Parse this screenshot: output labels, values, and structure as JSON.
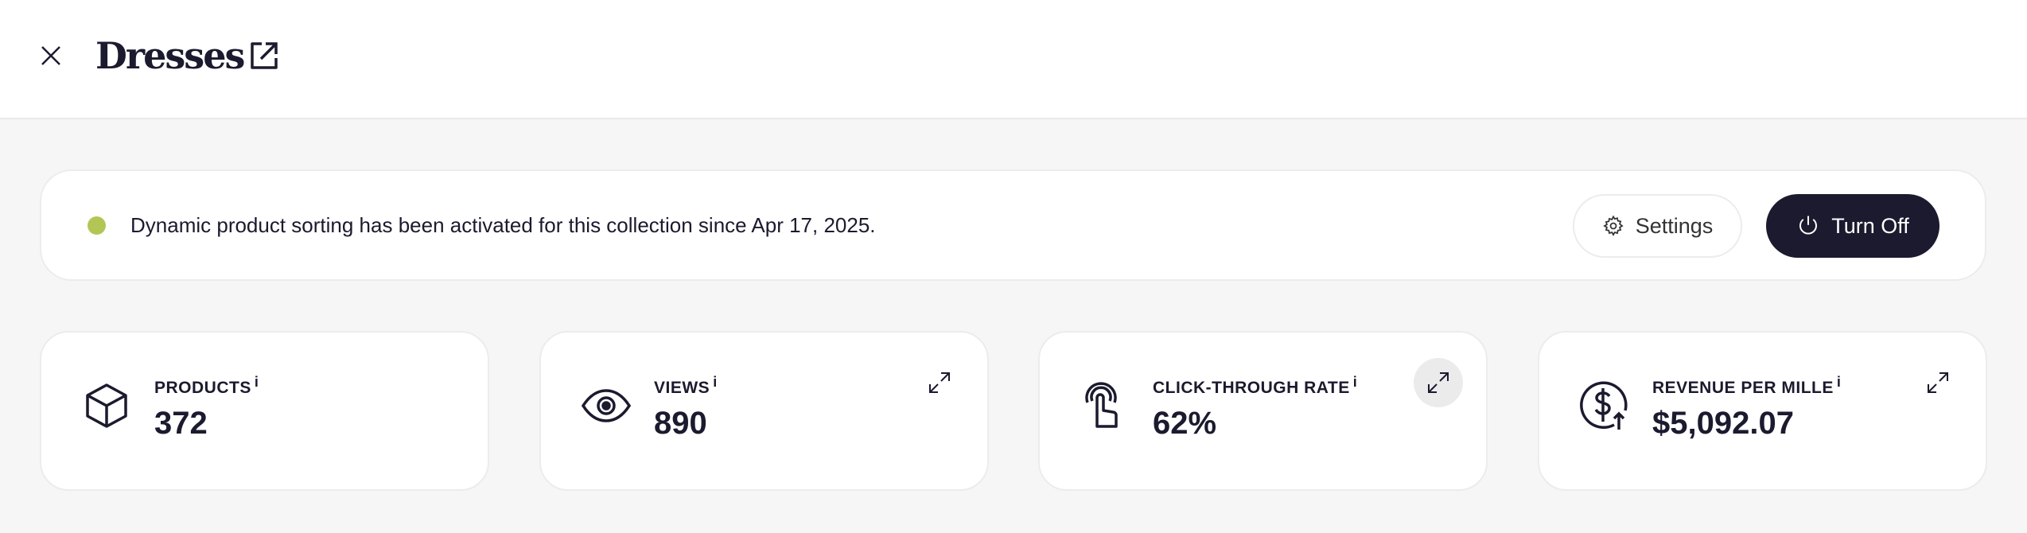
{
  "header": {
    "title": "Dresses",
    "close_icon": "close-icon",
    "external_icon": "external-link-icon"
  },
  "banner": {
    "status_color": "#b2c656",
    "message": "Dynamic product sorting has been activated for this collection since Apr 17, 2025.",
    "settings_label": "Settings",
    "turn_off_label": "Turn Off"
  },
  "cards": [
    {
      "label": "PRODUCTS",
      "info": "i",
      "value": "372",
      "icon": "box-icon"
    },
    {
      "label": "VIEWS",
      "info": "i",
      "value": "890",
      "icon": "eye-icon"
    },
    {
      "label": "CLICK-THROUGH RATE",
      "info": "i",
      "value": "62%",
      "icon": "tap-icon"
    },
    {
      "label": "REVENUE PER MILLE",
      "info": "i",
      "value": "$5,092.07",
      "icon": "dollar-growth-icon"
    }
  ]
}
